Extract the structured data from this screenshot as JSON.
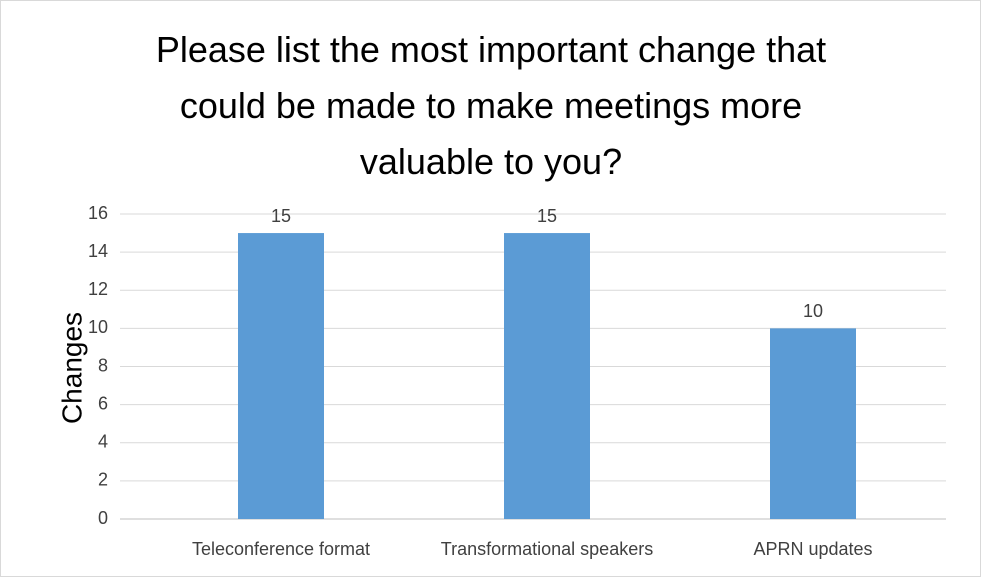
{
  "chart_data": {
    "type": "bar",
    "title": "Please list the most important change that could be made to make meetings more valuable to you?",
    "y_label": "Changes",
    "categories": [
      "Teleconference format",
      "Transformational speakers",
      "APRN updates"
    ],
    "values": [
      15,
      15,
      10
    ],
    "color": "#5b9bd5",
    "ylim": [
      0,
      16
    ],
    "yticks": [
      0,
      2,
      4,
      6,
      8,
      10,
      12,
      14,
      16
    ],
    "grid": true
  }
}
